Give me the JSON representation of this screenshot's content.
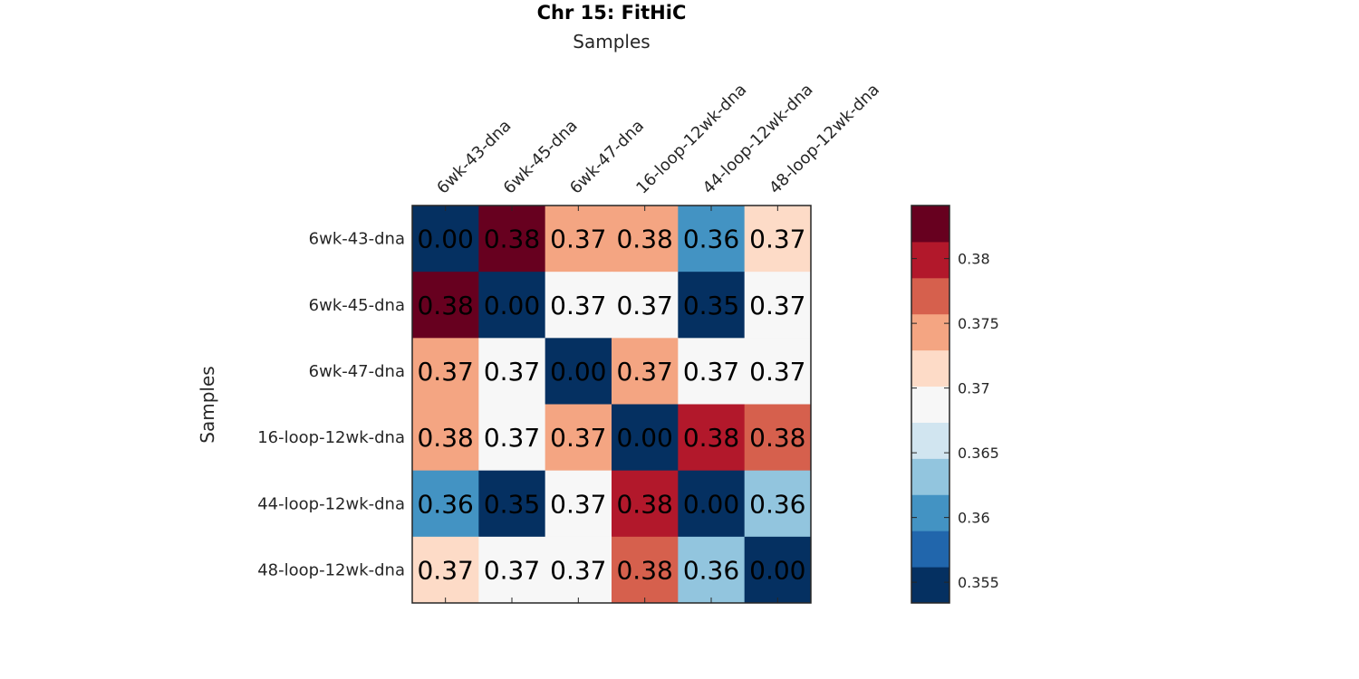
{
  "chart_data": {
    "type": "heatmap",
    "title": "Chr 15: FitHiC",
    "xlabel": "Samples",
    "ylabel": "Samples",
    "x_categories": [
      "6wk-43-dna",
      "6wk-45-dna",
      "6wk-47-dna",
      "16-loop-12wk-dna",
      "44-loop-12wk-dna",
      "48-loop-12wk-dna"
    ],
    "y_categories": [
      "6wk-43-dna",
      "6wk-45-dna",
      "6wk-47-dna",
      "16-loop-12wk-dna",
      "44-loop-12wk-dna",
      "48-loop-12wk-dna"
    ],
    "values": [
      [
        0.0,
        0.38,
        0.37,
        0.38,
        0.36,
        0.37
      ],
      [
        0.38,
        0.0,
        0.37,
        0.37,
        0.35,
        0.37
      ],
      [
        0.37,
        0.37,
        0.0,
        0.37,
        0.37,
        0.37
      ],
      [
        0.38,
        0.37,
        0.37,
        0.0,
        0.38,
        0.38
      ],
      [
        0.36,
        0.35,
        0.37,
        0.38,
        0.0,
        0.36
      ],
      [
        0.37,
        0.37,
        0.37,
        0.38,
        0.36,
        0.0
      ]
    ],
    "cell_labels": [
      [
        "0.00",
        "0.38",
        "0.37",
        "0.38",
        "0.36",
        "0.37"
      ],
      [
        "0.38",
        "0.00",
        "0.37",
        "0.37",
        "0.35",
        "0.37"
      ],
      [
        "0.37",
        "0.37",
        "0.00",
        "0.37",
        "0.37",
        "0.37"
      ],
      [
        "0.38",
        "0.37",
        "0.37",
        "0.00",
        "0.38",
        "0.38"
      ],
      [
        "0.36",
        "0.35",
        "0.37",
        "0.38",
        "0.00",
        "0.36"
      ],
      [
        "0.37",
        "0.37",
        "0.37",
        "0.38",
        "0.36",
        "0.00"
      ]
    ],
    "cell_colors": [
      [
        "#053061",
        "#67001f",
        "#f4a582",
        "#f4a582",
        "#4393c3",
        "#fddbc7"
      ],
      [
        "#67001f",
        "#053061",
        "#f7f7f7",
        "#f7f7f7",
        "#053061",
        "#f7f7f7"
      ],
      [
        "#f4a582",
        "#f7f7f7",
        "#053061",
        "#f4a582",
        "#f7f7f7",
        "#f7f7f7"
      ],
      [
        "#f4a582",
        "#f7f7f7",
        "#f4a582",
        "#053061",
        "#b2182b",
        "#d6604d"
      ],
      [
        "#4393c3",
        "#053061",
        "#f7f7f7",
        "#b2182b",
        "#053061",
        "#92c5de"
      ],
      [
        "#fddbc7",
        "#f7f7f7",
        "#f7f7f7",
        "#d6604d",
        "#92c5de",
        "#053061"
      ]
    ],
    "colorbar": {
      "range": [
        0.3534,
        0.3841
      ],
      "colors_bottom_to_top": [
        "#053061",
        "#2166ac",
        "#4393c3",
        "#92c5de",
        "#d1e5f0",
        "#f7f7f7",
        "#fddbc7",
        "#f4a582",
        "#d6604d",
        "#b2182b",
        "#67001f"
      ],
      "ticks": [
        0.355,
        0.36,
        0.365,
        0.37,
        0.375,
        0.38
      ],
      "tick_labels": [
        "0.355",
        "0.36",
        "0.365",
        "0.37",
        "0.375",
        "0.38"
      ]
    },
    "grid": false,
    "legend": "colorbar-right"
  }
}
